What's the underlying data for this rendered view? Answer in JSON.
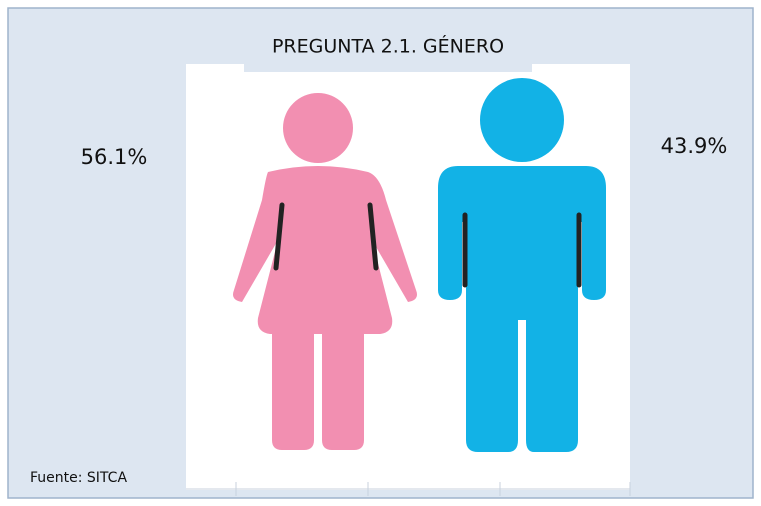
{
  "chart_data": {
    "type": "pictogram",
    "title": "PREGUNTA 2.1. GÉNERO",
    "values": [
      56.1,
      43.9
    ],
    "value_labels": [
      "56.1%",
      "43.9%"
    ],
    "colors": [
      "#f28fb1",
      "#12b2e6"
    ],
    "source": "Fuente: SITCA"
  }
}
